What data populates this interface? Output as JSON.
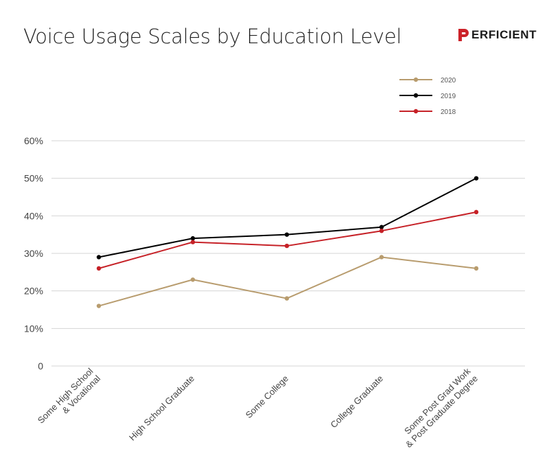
{
  "logo": {
    "text": "ERFICIENT",
    "full_text": "PERFICIENT",
    "mark_color": "#cc2229"
  },
  "chart_data": {
    "type": "line",
    "title": "Voice Usage Scales by Education Level",
    "xlabel": "",
    "ylabel": "",
    "categories": [
      [
        "Some High School",
        "& Vocational"
      ],
      [
        "High School Graduate"
      ],
      [
        "Some College"
      ],
      [
        "College Graduate"
      ],
      [
        "Some Post Grad Work",
        "& Post Graduate Degree"
      ]
    ],
    "ylim": [
      0,
      60
    ],
    "y_ticks": [
      {
        "value": 0,
        "label": "0"
      },
      {
        "value": 10,
        "label": "10%"
      },
      {
        "value": 20,
        "label": "20%"
      },
      {
        "value": 30,
        "label": "30%"
      },
      {
        "value": 40,
        "label": "40%"
      },
      {
        "value": 50,
        "label": "50%"
      },
      {
        "value": 60,
        "label": "60%"
      }
    ],
    "grid": true,
    "legend_position": "top-right",
    "series": [
      {
        "name": "2020",
        "color": "#b89c6e",
        "values": [
          16,
          23,
          18,
          29,
          26
        ]
      },
      {
        "name": "2019",
        "color": "#000000",
        "values": [
          29,
          34,
          35,
          37,
          50
        ]
      },
      {
        "name": "2018",
        "color": "#c62127",
        "values": [
          26,
          33,
          32,
          36,
          41
        ]
      }
    ]
  }
}
